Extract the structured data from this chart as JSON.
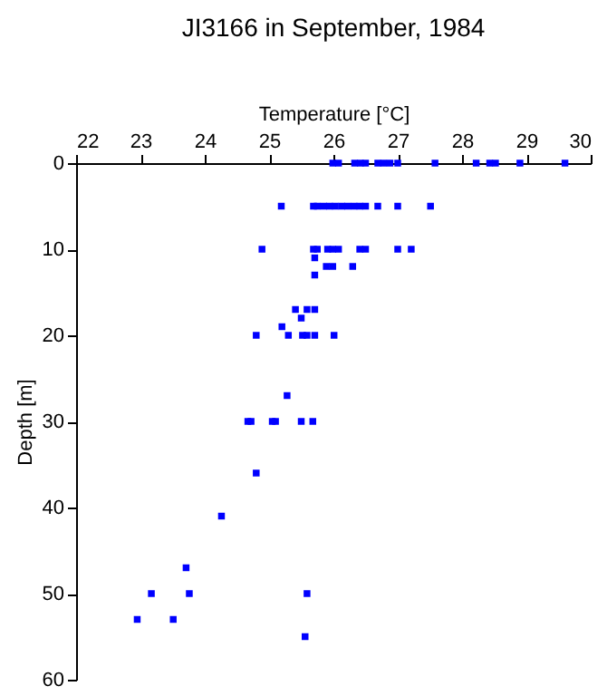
{
  "chart_data": {
    "type": "scatter",
    "title": "JI3166 in September, 1984",
    "xlabel": "Temperature [°C]",
    "ylabel": "Depth [m]",
    "xlim": [
      22,
      30
    ],
    "xticks": [
      22,
      23,
      24,
      25,
      26,
      27,
      28,
      29,
      30
    ],
    "ylim": [
      60,
      0
    ],
    "yticks": [
      0,
      10,
      20,
      30,
      40,
      50,
      60
    ],
    "marker": "square",
    "grid": false,
    "series": [
      {
        "color": "#0000ff",
        "x": [
          25.99,
          26.08,
          26.33,
          26.42,
          26.5,
          26.69,
          26.78,
          26.88,
          27.0,
          27.58,
          28.22,
          28.43,
          28.52,
          28.9,
          29.6,
          25.19,
          25.69,
          25.75,
          25.85,
          25.94,
          26.03,
          26.13,
          26.22,
          26.32,
          26.41,
          26.5,
          26.69,
          27.0,
          27.51,
          24.89,
          25.69,
          25.75,
          25.91,
          25.99,
          26.08,
          26.41,
          26.5,
          27.0,
          27.21,
          25.71,
          25.89,
          25.99,
          26.3,
          25.71,
          25.41,
          25.59,
          25.71,
          25.5,
          25.2,
          24.8,
          25.3,
          25.52,
          25.59,
          25.71,
          26.01,
          25.28,
          24.67,
          24.72,
          25.05,
          25.1,
          25.5,
          25.68,
          24.8,
          24.26,
          23.71,
          23.17,
          23.76,
          25.59,
          22.95,
          23.51,
          25.56
        ],
        "values": [
          0,
          0,
          0,
          0,
          0,
          0,
          0,
          0,
          0,
          0,
          0,
          0,
          0,
          0,
          0,
          5,
          5,
          5,
          5,
          5,
          5,
          5,
          5,
          5,
          5,
          5,
          5,
          5,
          5,
          10,
          10,
          10,
          10,
          10,
          10,
          10,
          10,
          10,
          10,
          11,
          12,
          12,
          12,
          13,
          17,
          17,
          17,
          18,
          19,
          20,
          20,
          20,
          20,
          20,
          20,
          27,
          30,
          30,
          30,
          30,
          30,
          30,
          36,
          41,
          47,
          50,
          50,
          50,
          53,
          53,
          55
        ]
      }
    ]
  }
}
